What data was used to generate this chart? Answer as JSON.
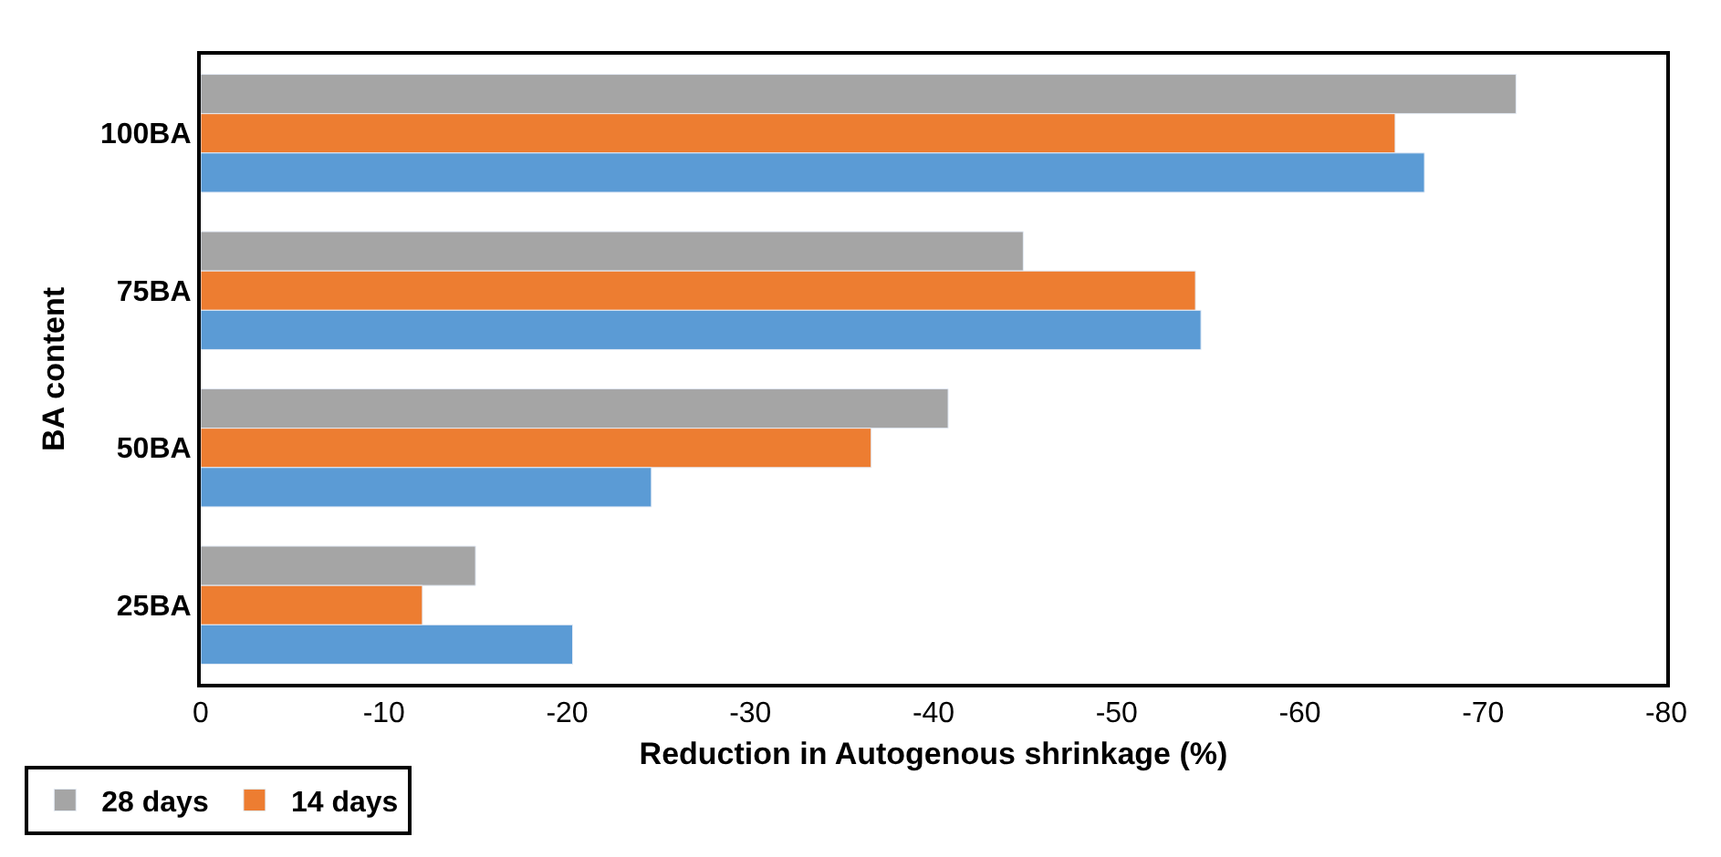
{
  "chart_data": {
    "type": "bar",
    "orientation": "horizontal",
    "xlabel": "Reduction in Autogenous shrinkage (%)",
    "ylabel": "BA content",
    "categories": [
      "100BA",
      "75BA",
      "50BA",
      "25BA"
    ],
    "series": [
      {
        "name": "28 days",
        "color": "#a5a5a5",
        "values": [
          -71.8,
          -44.9,
          -40.8,
          -15.0
        ]
      },
      {
        "name": "14 days",
        "color": "#ed7d31",
        "values": [
          -65.2,
          -54.3,
          -36.6,
          -12.1
        ]
      },
      {
        "color": "#5b9bd5",
        "values": [
          -66.8,
          -54.6,
          -24.6,
          -20.3
        ]
      }
    ],
    "xlim": [
      0,
      -80
    ],
    "xticks": [
      0,
      -10,
      -20,
      -30,
      -40,
      -50,
      -60,
      -70,
      -80
    ],
    "legend": "bottom left"
  }
}
